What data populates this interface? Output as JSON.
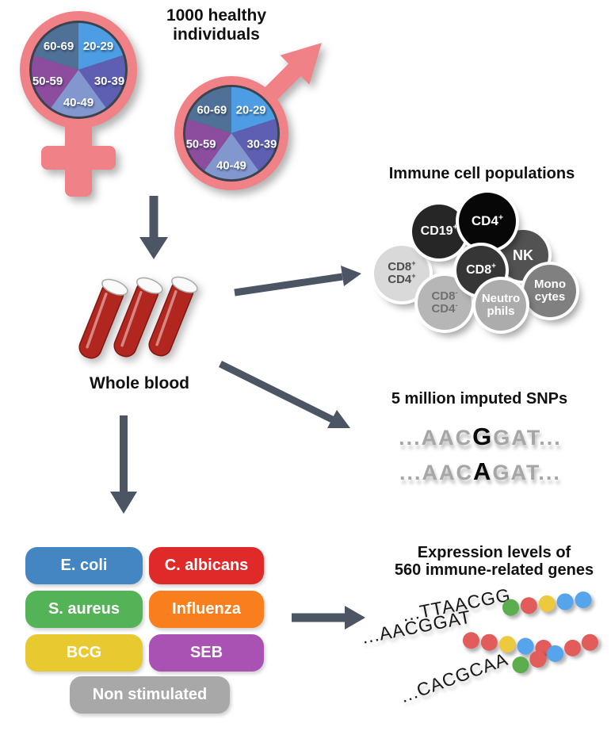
{
  "figure_title": {
    "line1": "1000 healthy",
    "line2": "individuals"
  },
  "demographics": {
    "ages": [
      "20-29",
      "30-39",
      "40-49",
      "50-59",
      "60-69"
    ],
    "slice_colors": [
      "#4C9DE4",
      "#5E5FB2",
      "#8197CE",
      "#8C4D9F",
      "#4F7097"
    ],
    "slice_fraction_each": 0.2,
    "symbol_color": "#EF8187",
    "ring_color": "#3A434E"
  },
  "whole_blood": {
    "label": "Whole blood",
    "tube_color": "#B1261E"
  },
  "arrows": {
    "color": "#4B5563"
  },
  "immune": {
    "heading": "Immune cell populations",
    "cells": [
      {
        "name": "CD8+CD4+",
        "fill": "#D9D9D9",
        "text_color": "#4D4D4D",
        "lines": [
          {
            "base": "CD8",
            "sup": "+"
          },
          {
            "base": "CD4",
            "sup": "+"
          }
        ]
      },
      {
        "name": "CD19+",
        "fill": "#262626",
        "text_color": "#FFFFFF",
        "lines": [
          {
            "base": "CD19",
            "sup": "+"
          }
        ]
      },
      {
        "name": "CD4+",
        "fill": "#070707",
        "text_color": "#FFFFFF",
        "lines": [
          {
            "base": "CD4",
            "sup": "+"
          }
        ]
      },
      {
        "name": "NK",
        "fill": "#525252",
        "text_color": "#FFFFFF",
        "lines": [
          {
            "base": "NK",
            "sup": ""
          }
        ]
      },
      {
        "name": "CD8+",
        "fill": "#363636",
        "text_color": "#FFFFFF",
        "lines": [
          {
            "base": "CD8",
            "sup": "+"
          }
        ]
      },
      {
        "name": "CD8-CD4-",
        "fill": "#B6B6B6",
        "text_color": "#707070",
        "lines": [
          {
            "base": "CD8",
            "sup": "-"
          },
          {
            "base": "CD4",
            "sup": "-"
          }
        ]
      },
      {
        "name": "Monocytes",
        "fill": "#808080",
        "text_color": "#FFFFFF",
        "lines": [
          {
            "base": "Mono",
            "sup": ""
          },
          {
            "base": "cytes",
            "sup": ""
          }
        ]
      },
      {
        "name": "Neutrophils",
        "fill": "#ACACAC",
        "text_color": "#FFFFFF",
        "lines": [
          {
            "base": "Neutro",
            "sup": ""
          },
          {
            "base": "phils",
            "sup": ""
          }
        ]
      }
    ]
  },
  "snps": {
    "heading": "5 million imputed SNPs",
    "rows": [
      {
        "prefix": "...AAC",
        "variant": "G",
        "suffix": "GAT..."
      },
      {
        "prefix": "...AAC",
        "variant": "A",
        "suffix": "GAT..."
      }
    ]
  },
  "stimuli": {
    "items": [
      {
        "label": "E. coli",
        "color": "#4486C1"
      },
      {
        "label": "C. albicans",
        "color": "#E02A2A"
      },
      {
        "label": "S. aureus",
        "color": "#54B257"
      },
      {
        "label": "Influenza",
        "color": "#F87E1E"
      },
      {
        "label": "BCG",
        "color": "#E8C930"
      },
      {
        "label": "SEB",
        "color": "#AA52B4"
      },
      {
        "label": "Non stimulated",
        "color": "#A8A8A8"
      }
    ]
  },
  "expression": {
    "heading_line1": "Expression levels of",
    "heading_line2": "560 immune-related genes",
    "palette": {
      "green": "#5BAD4E",
      "red": "#E25C5C",
      "yellow": "#EDC93F",
      "blue": "#55A4EC"
    },
    "rows": [
      {
        "sequence": "...TTAACGG",
        "dots": [
          "green",
          "red",
          "yellow",
          "blue",
          "blue"
        ]
      },
      {
        "sequence": "...AACGGAT",
        "dots": [
          "red",
          "red",
          "yellow",
          "blue",
          "red"
        ]
      },
      {
        "sequence": "...CACGCAA",
        "dots": [
          "green",
          "red",
          "blue",
          "red",
          "red"
        ]
      }
    ]
  }
}
